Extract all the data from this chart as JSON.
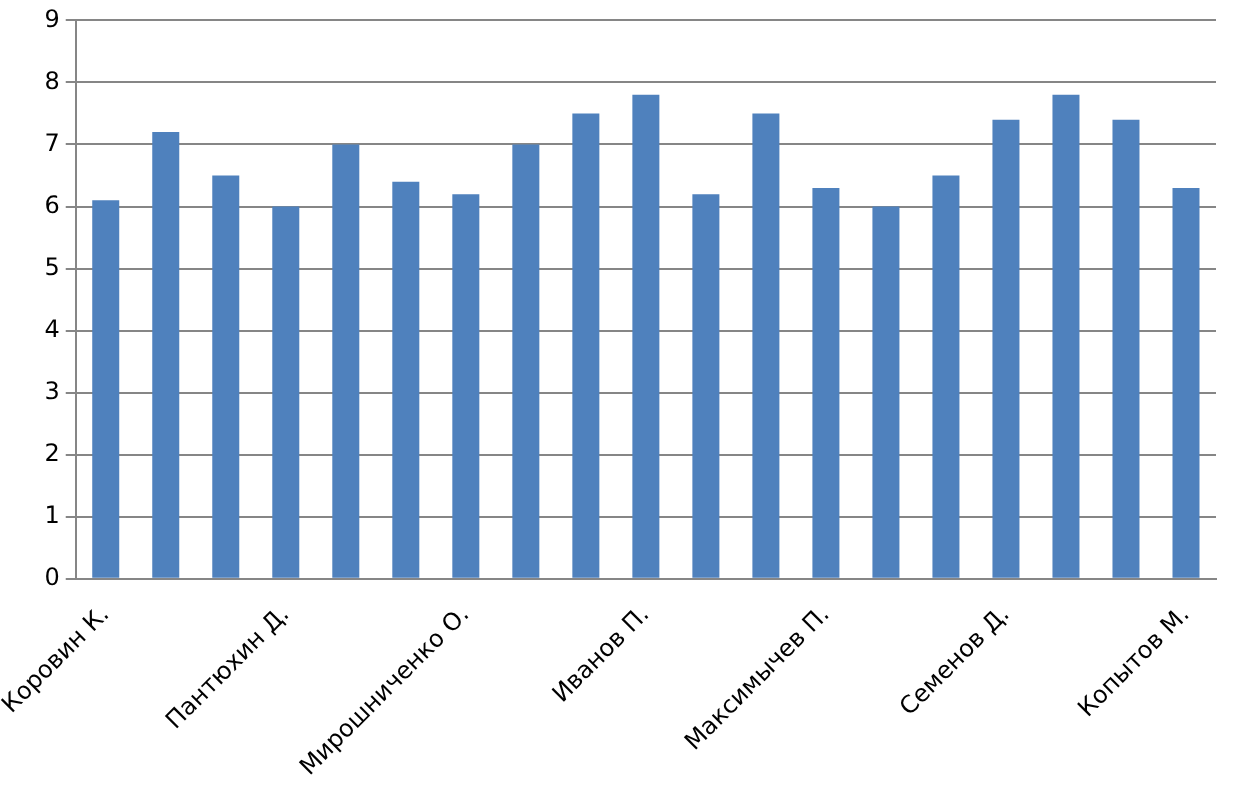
{
  "chart_data": {
    "type": "bar",
    "categories": [
      "Коровин К.",
      null,
      null,
      "Пантюхин Д.",
      null,
      null,
      "Мирошниченко О.",
      null,
      null,
      "Иванов П.",
      null,
      null,
      "Максимычев П.",
      null,
      null,
      "Семенов Д.",
      null,
      null,
      "Копытов М."
    ],
    "values": [
      6.1,
      7.2,
      6.5,
      6.0,
      7.0,
      6.4,
      6.2,
      7.0,
      7.5,
      7.8,
      6.2,
      7.5,
      6.3,
      6.0,
      6.5,
      7.4,
      7.8,
      7.4,
      6.3
    ],
    "color": "#4f81bd",
    "ylim": [
      0,
      9
    ],
    "yticks": [
      0,
      1,
      2,
      3,
      4,
      5,
      6,
      7,
      8,
      9
    ],
    "grid": "y"
  }
}
